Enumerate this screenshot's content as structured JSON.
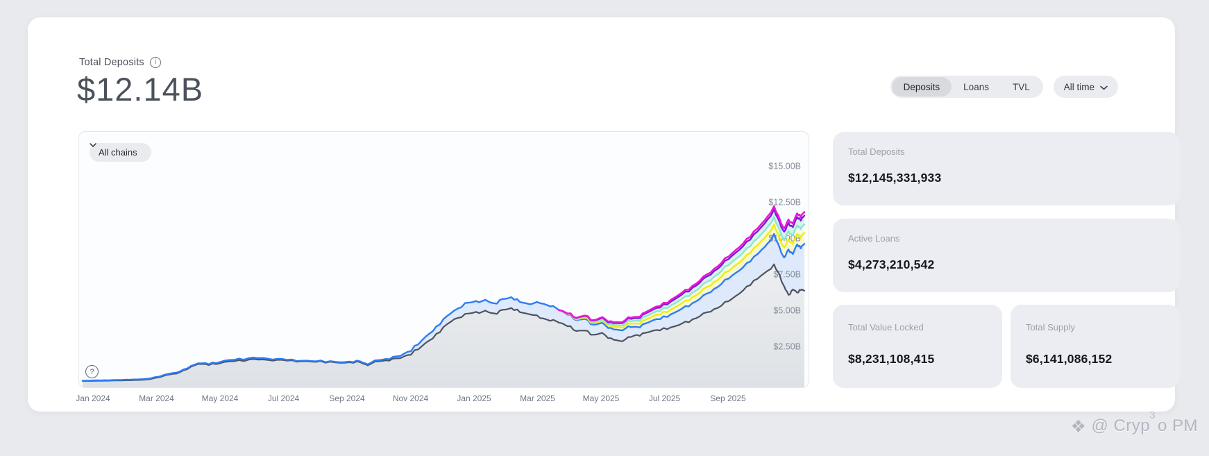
{
  "header": {
    "title": "Total Deposits",
    "info_icon": "i",
    "value": "$12.14B"
  },
  "controls": {
    "metric_tabs": [
      {
        "label": "Deposits",
        "active": true
      },
      {
        "label": "Loans",
        "active": false
      },
      {
        "label": "TVL",
        "active": false
      }
    ],
    "time_range": {
      "label": "All time"
    }
  },
  "chart_controls": {
    "chain_filter_label": "All chains",
    "help_icon": "?"
  },
  "chart_data": {
    "type": "area",
    "title": "",
    "xlabel": "",
    "ylabel": "",
    "x_ticks": [
      "Jan 2024",
      "Mar 2024",
      "May 2024",
      "Jul 2024",
      "Sep 2024",
      "Nov 2024",
      "Jan 2025",
      "Mar 2025",
      "May 2025",
      "Jul 2025",
      "Sep 2025"
    ],
    "y_ticks": [
      "$2.50B",
      "$5.00B",
      "$7.50B",
      "$10.00B",
      "$12.50B",
      "$15.00B"
    ],
    "y_tick_values": [
      2.5,
      5,
      7.5,
      10,
      12.5,
      15
    ],
    "ylim": [
      -0.43,
      17.36
    ],
    "unit": "USD billions",
    "grid": false,
    "legend": false,
    "fracs": [
      0.0,
      0.015,
      0.03,
      0.045,
      0.06,
      0.075,
      0.09,
      0.105,
      0.115,
      0.13,
      0.145,
      0.16,
      0.175,
      0.19,
      0.21,
      0.23,
      0.25,
      0.27,
      0.29,
      0.31,
      0.33,
      0.35,
      0.37,
      0.385,
      0.395,
      0.41,
      0.425,
      0.44,
      0.455,
      0.47,
      0.485,
      0.5,
      0.515,
      0.53,
      0.545,
      0.558,
      0.57,
      0.582,
      0.594,
      0.606,
      0.62,
      0.634,
      0.648,
      0.66,
      0.672,
      0.684,
      0.696,
      0.708,
      0.72,
      0.732,
      0.744,
      0.756,
      0.768,
      0.78,
      0.795,
      0.81,
      0.825,
      0.84,
      0.855,
      0.87,
      0.885,
      0.9,
      0.915,
      0.93,
      0.945,
      0.958,
      0.966,
      0.972,
      0.978,
      0.984,
      0.99,
      0.995,
      1.0
    ],
    "series": [
      {
        "name": "chain-1-gray",
        "color": "#4d545e",
        "width": 2.2,
        "start_index": 0,
        "values": [
          0.1,
          0.11,
          0.12,
          0.14,
          0.15,
          0.17,
          0.2,
          0.35,
          0.5,
          0.62,
          0.95,
          1.28,
          1.26,
          1.32,
          1.52,
          1.56,
          1.6,
          1.55,
          1.5,
          1.46,
          1.42,
          1.4,
          1.36,
          1.42,
          1.18,
          1.5,
          1.55,
          1.7,
          2.0,
          2.5,
          3.1,
          3.8,
          4.4,
          4.7,
          4.85,
          4.95,
          4.72,
          5.05,
          5.1,
          4.92,
          4.7,
          4.52,
          4.3,
          4.18,
          3.95,
          3.55,
          3.65,
          3.25,
          3.45,
          3.0,
          2.85,
          3.1,
          3.25,
          3.45,
          3.6,
          3.75,
          3.95,
          4.25,
          4.6,
          4.95,
          5.35,
          5.8,
          6.4,
          7.0,
          7.6,
          8.1,
          7.4,
          6.6,
          6.05,
          6.45,
          6.2,
          6.45,
          6.35
        ]
      },
      {
        "name": "chain-2-blue",
        "color": "#2e7cf6",
        "width": 2.4,
        "start_index": 0,
        "values": [
          0.12,
          0.14,
          0.15,
          0.17,
          0.19,
          0.21,
          0.25,
          0.4,
          0.55,
          0.68,
          1.0,
          1.33,
          1.32,
          1.4,
          1.62,
          1.66,
          1.7,
          1.62,
          1.55,
          1.5,
          1.46,
          1.44,
          1.4,
          1.48,
          1.25,
          1.58,
          1.65,
          1.85,
          2.25,
          2.9,
          3.6,
          4.35,
          5.0,
          5.45,
          5.6,
          5.7,
          5.42,
          5.8,
          5.85,
          5.62,
          5.4,
          5.55,
          5.3,
          5.05,
          4.75,
          4.3,
          4.45,
          3.95,
          4.15,
          3.7,
          3.6,
          3.85,
          3.8,
          4.1,
          4.35,
          4.6,
          4.95,
          5.35,
          5.8,
          6.3,
          6.85,
          7.4,
          8.0,
          8.65,
          9.4,
          10.2,
          9.3,
          8.6,
          9.2,
          8.9,
          9.55,
          9.35,
          9.6
        ]
      },
      {
        "name": "chain-3-yellow",
        "color": "#edee0e",
        "width": 2.4,
        "start_index": 43,
        "values": [
          5.05,
          4.78,
          4.35,
          4.53,
          4.06,
          4.28,
          3.86,
          3.79,
          4.06,
          4.04,
          4.36,
          4.65,
          4.93,
          5.31,
          5.75,
          6.23,
          6.76,
          7.35,
          7.93,
          8.56,
          9.25,
          10.03,
          10.86,
          9.98,
          9.29,
          9.9,
          9.61,
          10.28,
          10.09,
          10.35
        ]
      },
      {
        "name": "chain-4-mint",
        "color": "#8ae6d2",
        "width": 2.4,
        "start_index": 43,
        "values": [
          5.05,
          4.8,
          4.4,
          4.59,
          4.14,
          4.39,
          3.99,
          3.93,
          4.23,
          4.23,
          4.58,
          4.89,
          5.2,
          5.6,
          6.06,
          6.57,
          7.13,
          7.74,
          8.35,
          9.01,
          9.72,
          10.53,
          11.38,
          10.52,
          9.84,
          10.46,
          10.19,
          10.86,
          10.68,
          10.95
        ]
      },
      {
        "name": "chain-5-purple",
        "color": "#7a1ad8",
        "width": 2.4,
        "start_index": 43,
        "values": [
          5.05,
          4.82,
          4.44,
          4.66,
          4.23,
          4.49,
          4.11,
          4.08,
          4.4,
          4.42,
          4.79,
          5.12,
          5.46,
          5.9,
          6.38,
          6.92,
          7.51,
          8.14,
          8.78,
          9.46,
          10.2,
          11.03,
          11.91,
          11.06,
          10.39,
          11.02,
          10.76,
          11.44,
          11.27,
          11.55
        ]
      },
      {
        "name": "total-magenta",
        "color": "#ea16d9",
        "width": 2.6,
        "start_index": 43,
        "values": [
          5.05,
          4.83,
          4.46,
          4.68,
          4.26,
          4.54,
          4.17,
          4.14,
          4.47,
          4.5,
          4.88,
          5.22,
          5.57,
          6.02,
          6.51,
          7.06,
          7.66,
          8.31,
          8.95,
          9.65,
          10.4,
          11.24,
          12.13,
          11.28,
          10.62,
          11.26,
          11.0,
          11.69,
          11.52,
          11.8
        ]
      }
    ],
    "fills": [
      {
        "upper": "chain-1-gray",
        "lower": "baseline",
        "color": "gray-gradient"
      },
      {
        "upper": "chain-2-blue",
        "lower": "chain-1-gray",
        "color": "rgba(70,130,242,0.16)"
      },
      {
        "upper": "chain-3-yellow",
        "lower": "chain-2-blue",
        "color": "rgba(232,232,30,0.20)"
      },
      {
        "upper": "chain-4-mint",
        "lower": "chain-3-yellow",
        "color": "rgba(240,240,150,0.25)"
      },
      {
        "upper": "chain-5-purple",
        "lower": "chain-4-mint",
        "color": "rgba(120,224,200,0.30)"
      }
    ]
  },
  "stats": {
    "cards": [
      {
        "label": "Total Deposits",
        "value": "$12,145,331,933"
      },
      {
        "label": "Active Loans",
        "value": "$4,273,210,542"
      },
      {
        "label": "Total Value Locked",
        "value": "$8,231,108,415"
      },
      {
        "label": "Total Supply",
        "value": "$6,141,086,152"
      }
    ]
  },
  "watermark": {
    "icon": "❖",
    "prefix": "@ Cryp",
    "sup": "3",
    "suffix": "o PM"
  },
  "colors": {
    "page_bg": "#e9eaee",
    "card_bg": "#ffffff",
    "stat_card_bg": "#ecedf2",
    "accent_blue": "#2e7cf6",
    "accent_magenta": "#ea16d9",
    "accent_purple": "#7a1ad8",
    "accent_yellow": "#edee0e",
    "accent_mint": "#8ae6d2",
    "line_gray": "#4d545e"
  }
}
